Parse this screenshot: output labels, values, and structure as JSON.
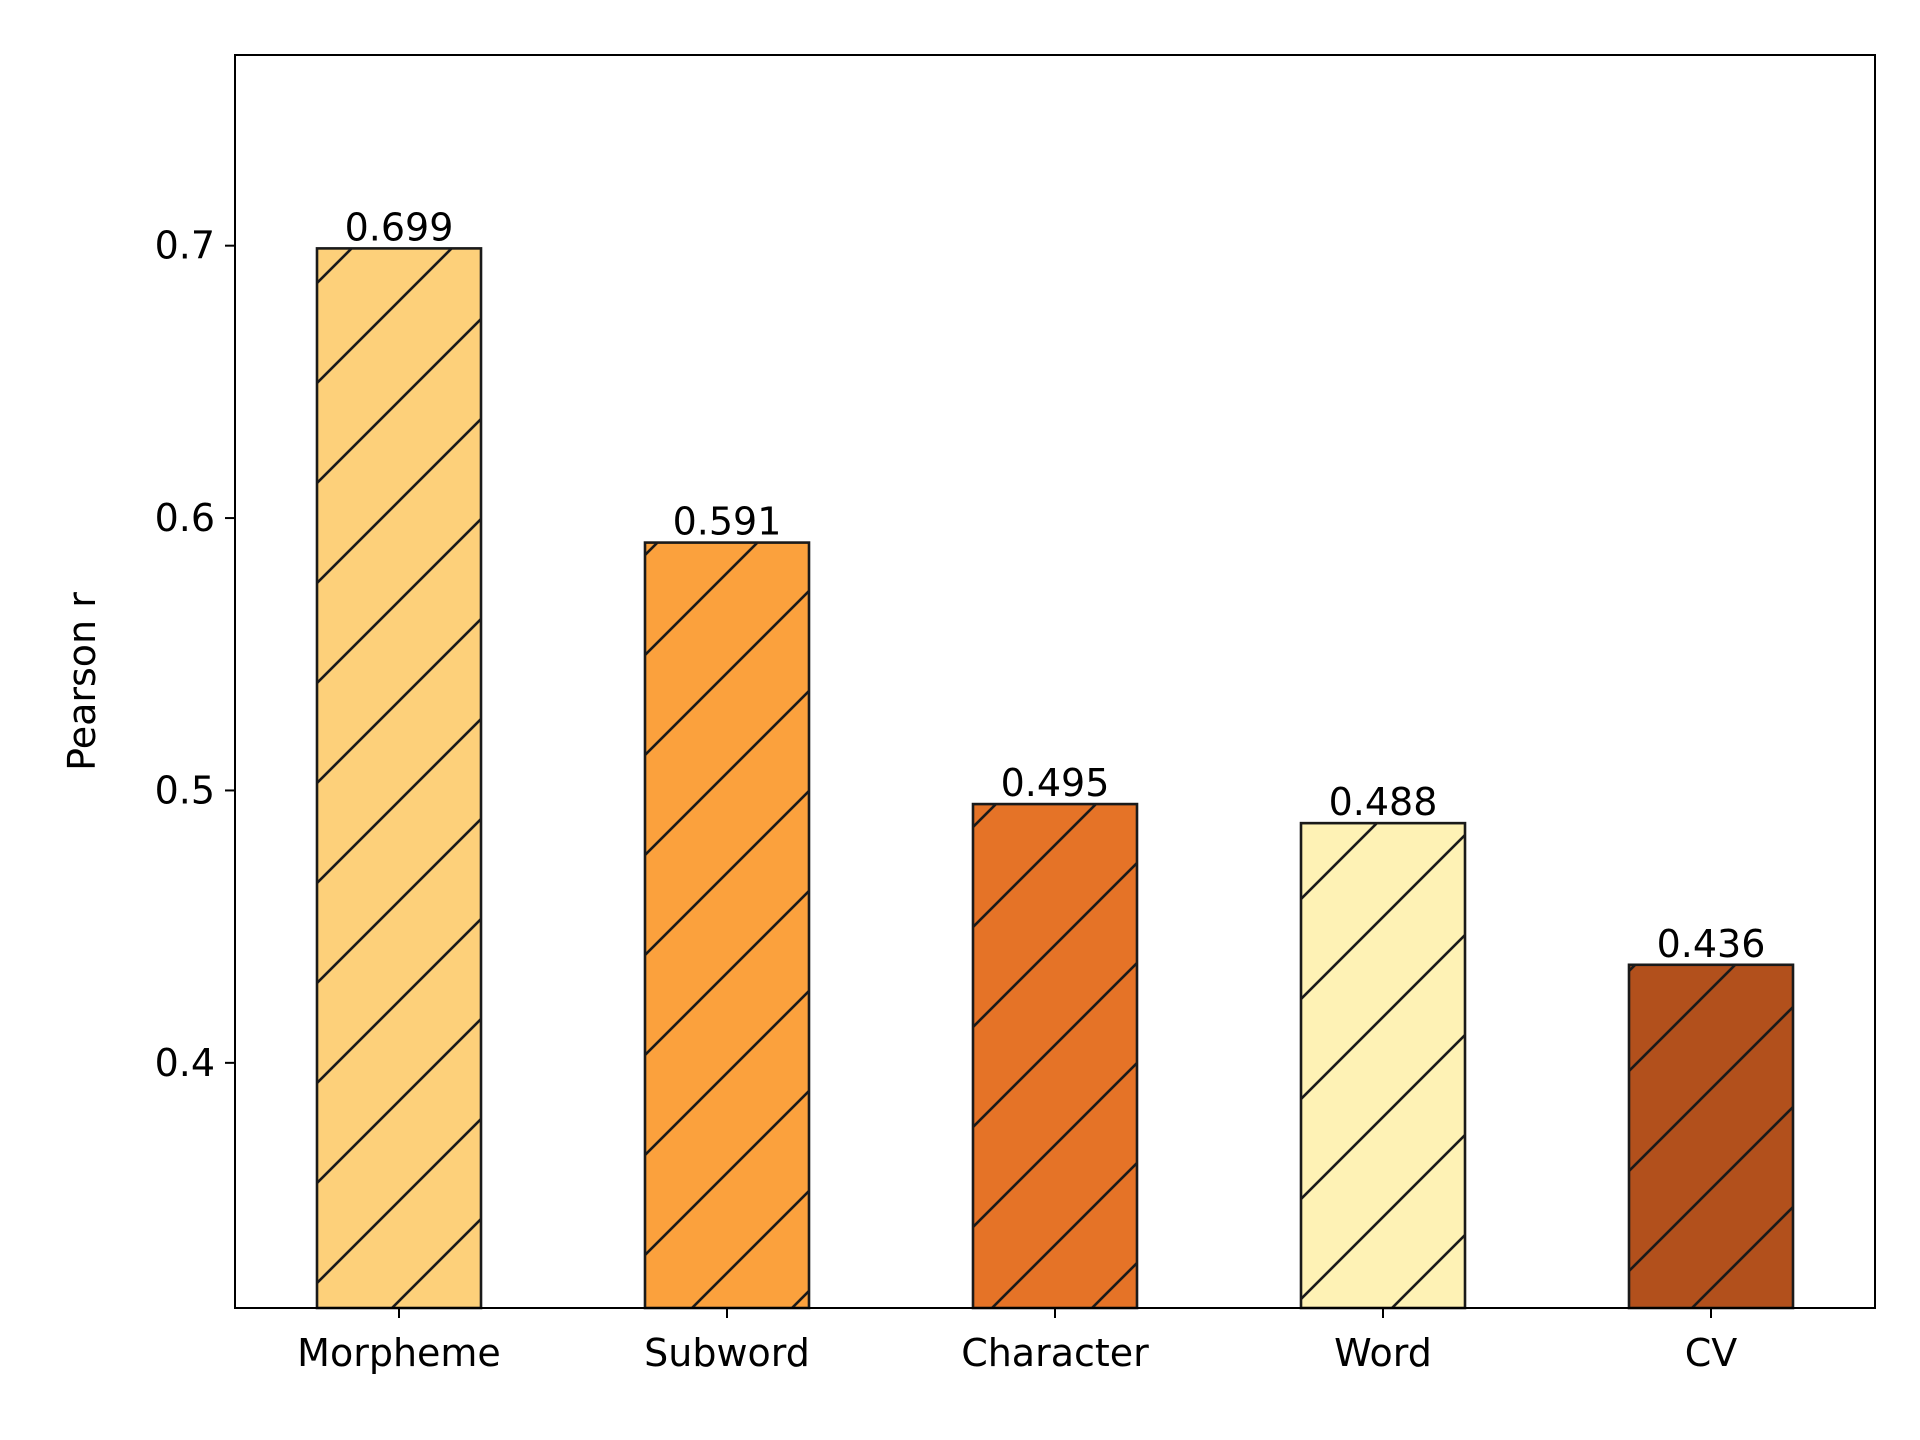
{
  "chart_data": {
    "type": "bar",
    "title": "",
    "xlabel": "",
    "ylabel": "Pearson r",
    "categories": [
      "Morpheme",
      "Subword",
      "Character",
      "Word",
      "CV"
    ],
    "values": [
      0.699,
      0.591,
      0.495,
      0.488,
      0.436
    ],
    "data_labels": [
      "0.699",
      "0.591",
      "0.495",
      "0.488",
      "0.436"
    ],
    "colors": [
      "#fdd07a",
      "#fba13d",
      "#e57327",
      "#fef2b5",
      "#b2501c"
    ],
    "hatch": "diagonal",
    "ylim": [
      0.31,
      0.77
    ],
    "yticks": [
      0.4,
      0.5,
      0.6,
      0.7
    ],
    "ytick_labels": [
      "0.4",
      "0.5",
      "0.6",
      "0.7"
    ],
    "grid": false,
    "legend": "none"
  }
}
